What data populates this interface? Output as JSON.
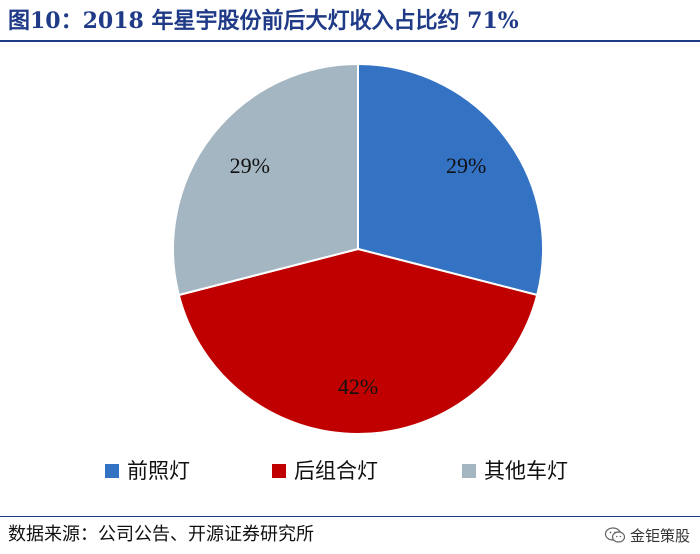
{
  "header": {
    "title": "图10：2018 年星宇股份前后大灯收入占比约 71%"
  },
  "chart_data": {
    "type": "pie",
    "categories": [
      "前照灯",
      "后组合灯",
      "其他车灯"
    ],
    "values": [
      29,
      42,
      29
    ],
    "value_labels": [
      "29%",
      "42%",
      "29%"
    ],
    "colors": [
      "#3472c4",
      "#c00000",
      "#a5b6c3"
    ],
    "legend_position": "bottom"
  },
  "footer": {
    "source": "数据来源：公司公告、开源证券研究所",
    "watermark": "金钜策股"
  }
}
